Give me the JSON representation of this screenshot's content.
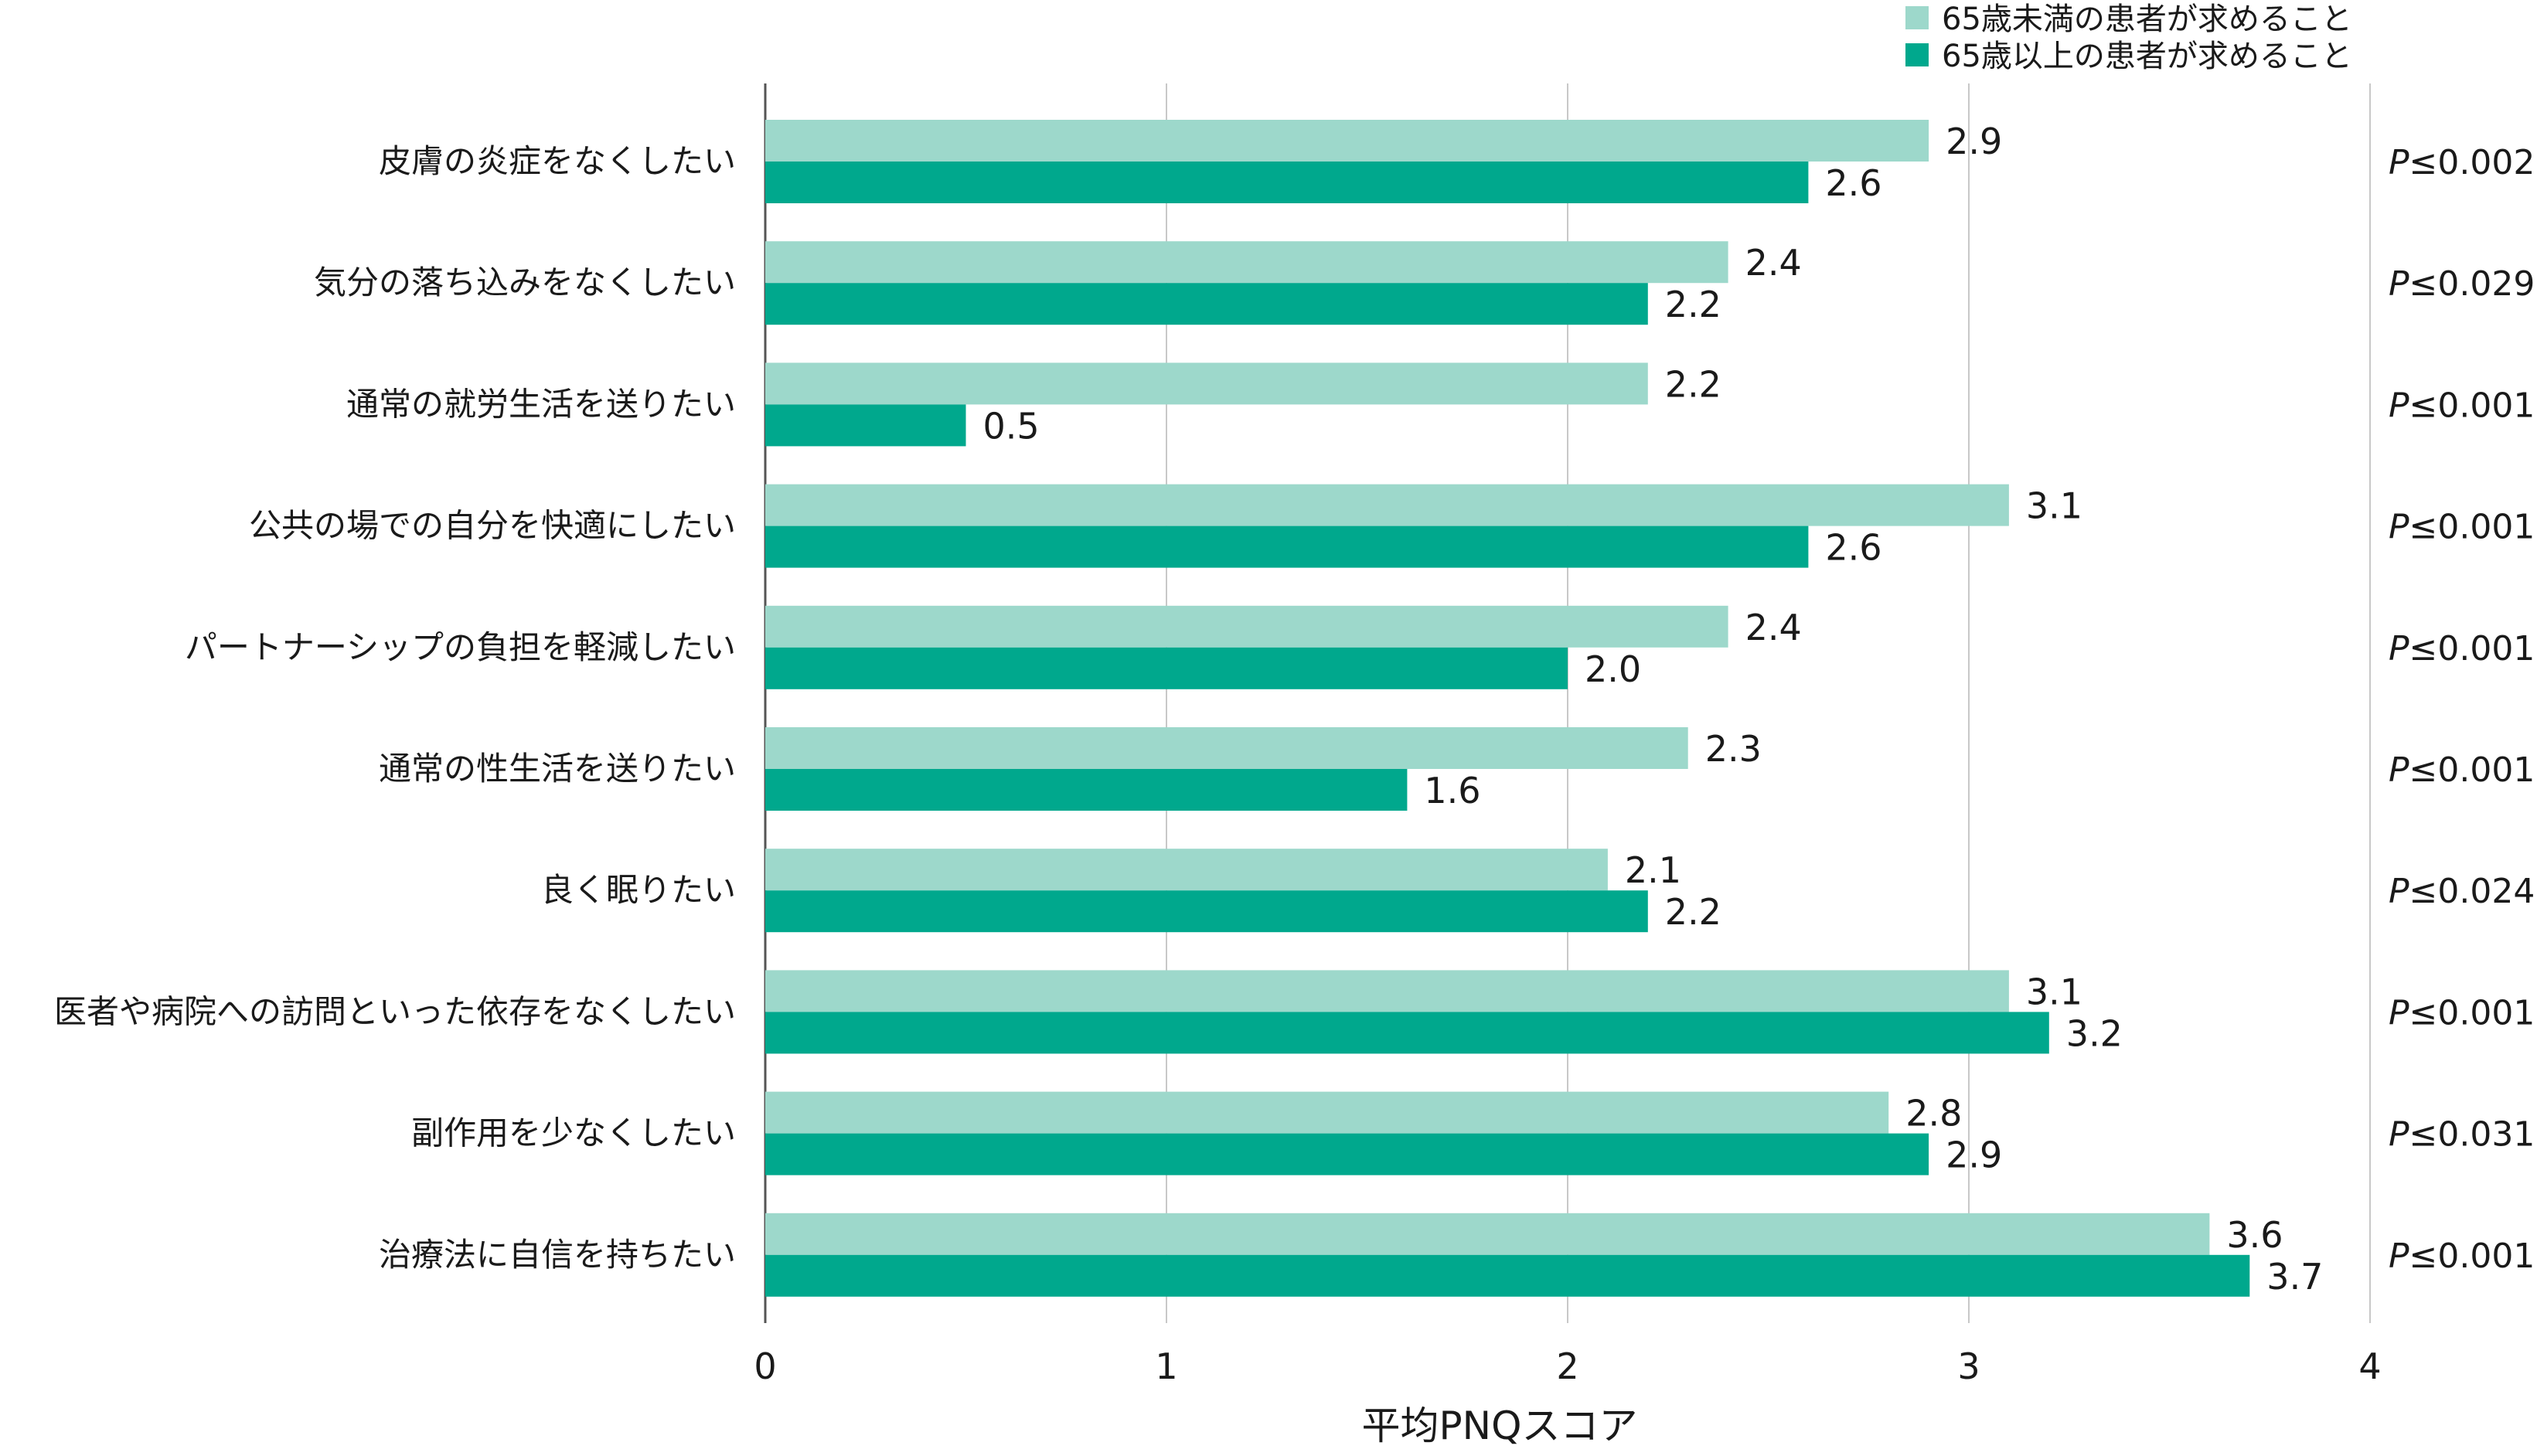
{
  "legend": {
    "under65": "65歳未満の患者が求めること",
    "over65": "65歳以上の患者が求めること"
  },
  "colors": {
    "under65": "#9dd8cb",
    "over65": "#00a88d",
    "grid": "#c8c8c8",
    "axis": "#555555"
  },
  "chart_data": {
    "type": "bar",
    "orientation": "horizontal",
    "categories": [
      "皮膚の炎症をなくしたい",
      "気分の落ち込みをなくしたい",
      "通常の就労生活を送りたい",
      "公共の場での自分を快適にしたい",
      "パートナーシップの負担を軽減したい",
      "通常の性生活を送りたい",
      "良く眠りたい",
      "医者や病院への訪問といった依存をなくしたい",
      "副作用を少なくしたい",
      "治療法に自信を持ちたい"
    ],
    "series": [
      {
        "name": "65歳未満の患者が求めること",
        "values": [
          2.9,
          2.4,
          2.2,
          3.1,
          2.4,
          2.3,
          2.1,
          3.1,
          2.8,
          3.6
        ]
      },
      {
        "name": "65歳以上の患者が求めること",
        "values": [
          2.6,
          2.2,
          0.5,
          2.6,
          2.0,
          1.6,
          2.2,
          3.2,
          2.9,
          3.7
        ]
      }
    ],
    "value_labels": [
      [
        "2.9",
        "2.4",
        "2.2",
        "3.1",
        "2.4",
        "2.3",
        "2.1",
        "3.1",
        "2.8",
        "3.6"
      ],
      [
        "2.6",
        "2.2",
        "0.5",
        "2.6",
        "2.0",
        "1.6",
        "2.2",
        "3.2",
        "2.9",
        "3.7"
      ]
    ],
    "p_values": [
      "≤0.002",
      "≤0.029",
      "≤0.001",
      "≤0.001",
      "≤0.001",
      "≤0.001",
      "≤0.024",
      "≤0.001",
      "≤0.031",
      "≤0.001"
    ],
    "p_prefix": "P",
    "xlabel": "平均PNQスコア",
    "xlim": [
      0,
      4
    ],
    "xticks": [
      "0",
      "1",
      "2",
      "3",
      "4"
    ],
    "grid": true,
    "legend_position": "top-right"
  }
}
